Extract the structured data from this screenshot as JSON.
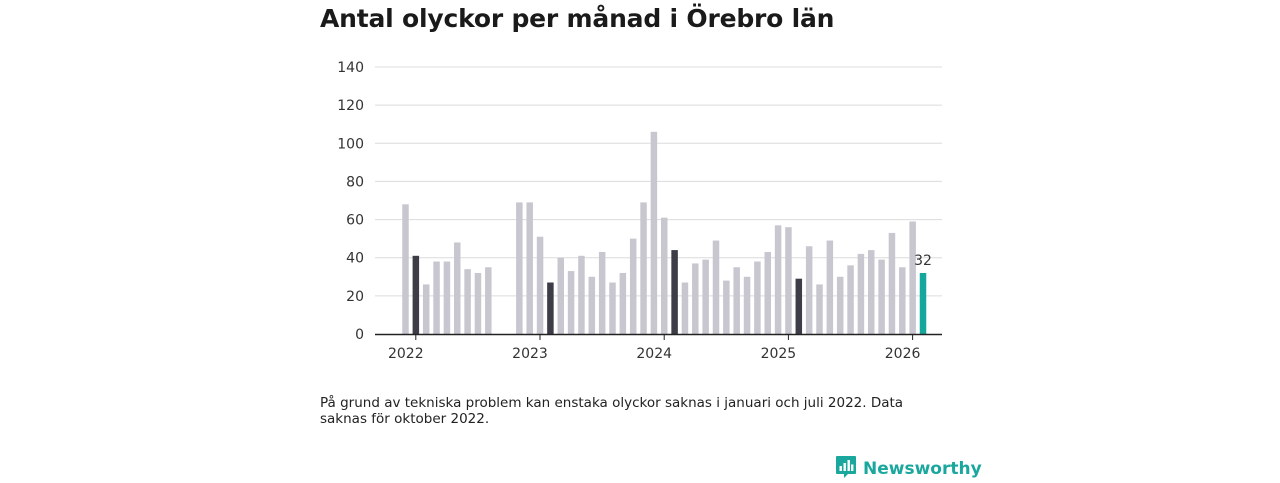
{
  "title": "Antal olyckor per månad i Örebro län",
  "note": "På grund av tekniska problem kan enstaka olyckor saknas i januari och juli 2022. Data saknas för oktober 2022.",
  "brand": {
    "name": "Newsworthy",
    "icon": "chart-bubble-icon"
  },
  "colors": {
    "default": "#c8c7cf",
    "january": "#3d3d47",
    "latest": "#16a79c",
    "grid": "#dcdcdc",
    "axis": "#222222"
  },
  "chart_data": {
    "type": "bar",
    "title": "Antal olyckor per månad i Örebro län",
    "xlabel": "",
    "ylabel": "",
    "ylim": [
      0,
      140
    ],
    "yticks": [
      0,
      20,
      40,
      60,
      80,
      100,
      120,
      140
    ],
    "xtick_labels": [
      "2022",
      "2023",
      "2024",
      "2025",
      "2026"
    ],
    "grid": true,
    "highlight_label": "32",
    "bars": [
      {
        "period": "2021-12",
        "value": 68,
        "kind": "default"
      },
      {
        "period": "2022-01",
        "value": 41,
        "kind": "january"
      },
      {
        "period": "2022-02",
        "value": 26,
        "kind": "default"
      },
      {
        "period": "2022-03",
        "value": 38,
        "kind": "default"
      },
      {
        "period": "2022-04",
        "value": 38,
        "kind": "default"
      },
      {
        "period": "2022-05",
        "value": 48,
        "kind": "default"
      },
      {
        "period": "2022-06",
        "value": 34,
        "kind": "default"
      },
      {
        "period": "2022-07",
        "value": 32,
        "kind": "default"
      },
      {
        "period": "2022-08",
        "value": 35,
        "kind": "default"
      },
      {
        "period": "2022-09",
        "value": null,
        "kind": "missing"
      },
      {
        "period": "2022-10",
        "value": null,
        "kind": "missing"
      },
      {
        "period": "2022-11",
        "value": 69,
        "kind": "default"
      },
      {
        "period": "2022-12",
        "value": 69,
        "kind": "default"
      },
      {
        "period": "2023-01",
        "value": 51,
        "kind": "default"
      },
      {
        "period": "2023-02",
        "value": 27,
        "kind": "january"
      },
      {
        "period": "2023-03",
        "value": 40,
        "kind": "default"
      },
      {
        "period": "2023-04",
        "value": 33,
        "kind": "default"
      },
      {
        "period": "2023-05",
        "value": 41,
        "kind": "default"
      },
      {
        "period": "2023-06",
        "value": 30,
        "kind": "default"
      },
      {
        "period": "2023-07",
        "value": 43,
        "kind": "default"
      },
      {
        "period": "2023-08",
        "value": 27,
        "kind": "default"
      },
      {
        "period": "2023-09",
        "value": 32,
        "kind": "default"
      },
      {
        "period": "2023-10",
        "value": 50,
        "kind": "default"
      },
      {
        "period": "2023-11",
        "value": 69,
        "kind": "default"
      },
      {
        "period": "2023-12",
        "value": 106,
        "kind": "default"
      },
      {
        "period": "2024-01",
        "value": 61,
        "kind": "default"
      },
      {
        "period": "2024-02",
        "value": 44,
        "kind": "january"
      },
      {
        "period": "2024-03",
        "value": 27,
        "kind": "default"
      },
      {
        "period": "2024-04",
        "value": 37,
        "kind": "default"
      },
      {
        "period": "2024-05",
        "value": 39,
        "kind": "default"
      },
      {
        "period": "2024-06",
        "value": 49,
        "kind": "default"
      },
      {
        "period": "2024-07",
        "value": 28,
        "kind": "default"
      },
      {
        "period": "2024-08",
        "value": 35,
        "kind": "default"
      },
      {
        "period": "2024-09",
        "value": 30,
        "kind": "default"
      },
      {
        "period": "2024-10",
        "value": 38,
        "kind": "default"
      },
      {
        "period": "2024-11",
        "value": 43,
        "kind": "default"
      },
      {
        "period": "2024-12",
        "value": 57,
        "kind": "default"
      },
      {
        "period": "2025-01",
        "value": 56,
        "kind": "default"
      },
      {
        "period": "2025-02",
        "value": 29,
        "kind": "january"
      },
      {
        "period": "2025-03",
        "value": 46,
        "kind": "default"
      },
      {
        "period": "2025-04",
        "value": 26,
        "kind": "default"
      },
      {
        "period": "2025-05",
        "value": 49,
        "kind": "default"
      },
      {
        "period": "2025-06",
        "value": 30,
        "kind": "default"
      },
      {
        "period": "2025-07",
        "value": 36,
        "kind": "default"
      },
      {
        "period": "2025-08",
        "value": 42,
        "kind": "default"
      },
      {
        "period": "2025-09",
        "value": 44,
        "kind": "default"
      },
      {
        "period": "2025-10",
        "value": 39,
        "kind": "default"
      },
      {
        "period": "2025-11",
        "value": 53,
        "kind": "default"
      },
      {
        "period": "2025-12",
        "value": 35,
        "kind": "default"
      },
      {
        "period": "2026-01",
        "value": 59,
        "kind": "default"
      },
      {
        "period": "2026-02",
        "value": 32,
        "kind": "latest"
      }
    ]
  }
}
